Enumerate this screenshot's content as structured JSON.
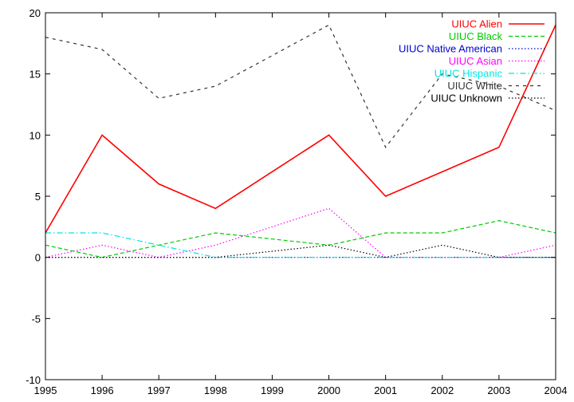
{
  "chart_data": {
    "type": "line",
    "title": "",
    "xlabel": "",
    "ylabel": "",
    "xlim": [
      1995,
      2004
    ],
    "ylim": [
      -10,
      20
    ],
    "x": [
      1995,
      1996,
      1997,
      1998,
      1999,
      2000,
      2001,
      2002,
      2003,
      2004
    ],
    "xticks": [
      "1995",
      "1996",
      "1997",
      "1998",
      "1999",
      "2000",
      "2001",
      "2002",
      "2003",
      "2004"
    ],
    "yticks": [
      "-10",
      "-5",
      "0",
      "5",
      "10",
      "15",
      "20"
    ],
    "grid": false,
    "legend_position": "top-right",
    "series": [
      {
        "name": "UIUC Alien",
        "color": "#ff0000",
        "dash": "solid",
        "values": [
          2,
          10,
          6,
          4,
          7,
          10,
          5,
          7,
          9,
          19
        ]
      },
      {
        "name": "UIUC Black",
        "color": "#00cc00",
        "dash": "dashed",
        "values": [
          1,
          0,
          1,
          2,
          1.5,
          1,
          2,
          2,
          3,
          2
        ]
      },
      {
        "name": "UIUC Native American",
        "color": "#0000cc",
        "dash": "dotted",
        "values": [
          0,
          0,
          0,
          0,
          0,
          0,
          0,
          0,
          0,
          0
        ]
      },
      {
        "name": "UIUC Asian",
        "color": "#ff00ff",
        "dash": "dotted",
        "values": [
          0,
          1,
          0,
          1,
          2.5,
          4,
          0,
          0,
          0,
          1
        ]
      },
      {
        "name": "UIUC Hispanic",
        "color": "#00e5e5",
        "dash": "dashdot",
        "values": [
          2,
          2,
          1,
          0,
          0,
          0,
          0,
          0,
          0,
          0
        ]
      },
      {
        "name": "UIUC White",
        "color": "#333333",
        "dash": "longdash",
        "values": [
          18,
          17,
          13,
          14,
          16.5,
          19,
          9,
          15,
          14,
          12
        ]
      },
      {
        "name": "UIUC Unknown",
        "color": "#000000",
        "dash": "dotted",
        "values": [
          0,
          0,
          0,
          0,
          0.5,
          1,
          0,
          1,
          0,
          0
        ]
      }
    ]
  }
}
